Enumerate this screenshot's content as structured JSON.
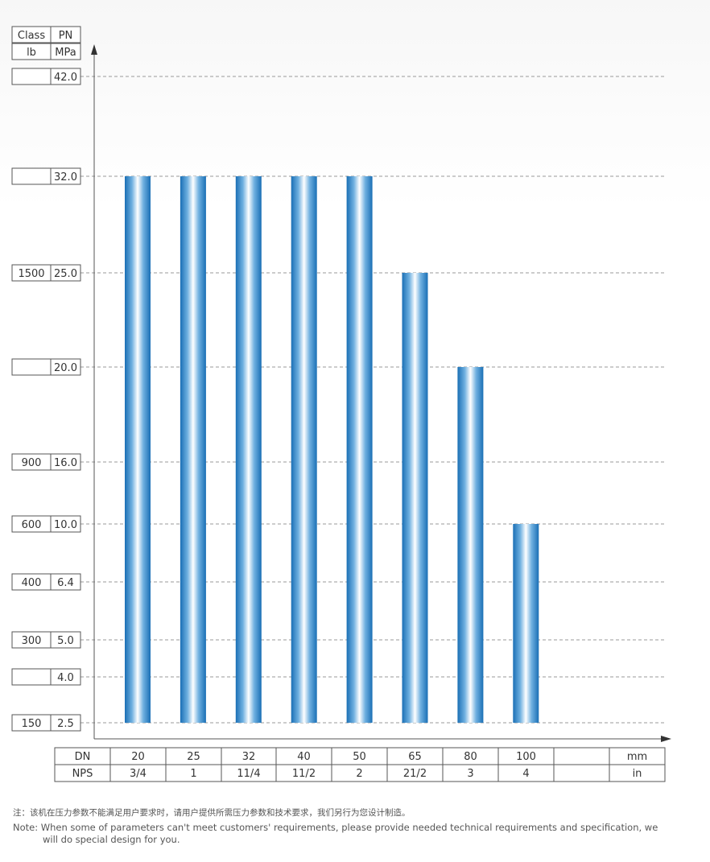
{
  "chart_data": {
    "type": "bar",
    "y_header": {
      "class_label": "Class",
      "class_unit": "lb",
      "pn_label": "PN",
      "pn_unit": "MPa"
    },
    "y_levels": [
      {
        "class": "",
        "pn": "42.0"
      },
      {
        "class": "",
        "pn": "32.0"
      },
      {
        "class": "1500",
        "pn": "25.0"
      },
      {
        "class": "",
        "pn": "20.0"
      },
      {
        "class": "900",
        "pn": "16.0"
      },
      {
        "class": "600",
        "pn": "10.0"
      },
      {
        "class": "400",
        "pn": "6.4"
      },
      {
        "class": "300",
        "pn": "5.0"
      },
      {
        "class": "",
        "pn": "4.0"
      },
      {
        "class": "150",
        "pn": "2.5"
      }
    ],
    "x_header": {
      "dn_label": "DN",
      "nps_label": "NPS",
      "dn_unit": "mm",
      "nps_unit": "in"
    },
    "categories_dn": [
      "20",
      "25",
      "32",
      "40",
      "50",
      "65",
      "80",
      "100"
    ],
    "categories_nps": [
      "3/4",
      "1",
      "11/4",
      "11/2",
      "2",
      "21/2",
      "3",
      "4"
    ],
    "values": [
      32.0,
      32.0,
      32.0,
      32.0,
      32.0,
      25.0,
      20.0,
      10.0
    ],
    "baseline": 2.5,
    "grid": "dashed horizontal at each level",
    "bar_color": "#2b7fc3"
  },
  "note_cn": "注：该机在压力参数不能满足用户要求时，请用户提供所需压力参数和技术要求，我们另行为您设计制造。",
  "note_en_line1": "Note: When some of parameters can't meet customers' requirements, please provide needed technical requirements and specification, we",
  "note_en_line2": "will do special design for you."
}
